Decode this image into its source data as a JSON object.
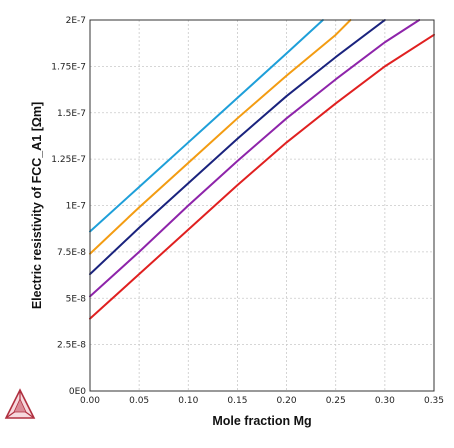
{
  "chart_data": {
    "type": "line",
    "title": "",
    "xlabel": "Mole fraction Mg",
    "ylabel": "Electric resistivity of FCC_A1 [Ωm]",
    "xlim": [
      0,
      0.35
    ],
    "ylim": [
      0,
      2e-07
    ],
    "xticks": [
      0,
      0.05,
      0.1,
      0.15,
      0.2,
      0.25,
      0.3,
      0.35
    ],
    "xtick_labels": [
      "0.00",
      "0.05",
      "0.10",
      "0.15",
      "0.20",
      "0.25",
      "0.30",
      "0.35"
    ],
    "yticks": [
      0,
      2.5e-08,
      5e-08,
      7.5e-08,
      1e-07,
      1.25e-07,
      1.5e-07,
      1.75e-07,
      2e-07
    ],
    "ytick_labels": [
      "0E0",
      "2.5E-8",
      "5E-8",
      "7.5E-8",
      "1E-7",
      "1.25E-7",
      "1.5E-7",
      "1.75E-7",
      "2E-7"
    ],
    "grid": true,
    "legend": "none",
    "series": [
      {
        "color": "#1e9fd9",
        "x": [
          0,
          0.05,
          0.1,
          0.15,
          0.2,
          0.237
        ],
        "y": [
          8.6e-08,
          1.1e-07,
          1.34e-07,
          1.58e-07,
          1.82e-07,
          2e-07
        ]
      },
      {
        "color": "#f39c12",
        "x": [
          0,
          0.05,
          0.1,
          0.15,
          0.2,
          0.25,
          0.265
        ],
        "y": [
          7.4e-08,
          9.9e-08,
          1.23e-07,
          1.47e-07,
          1.7e-07,
          1.92e-07,
          2e-07
        ]
      },
      {
        "color": "#1a237e",
        "x": [
          0,
          0.05,
          0.1,
          0.15,
          0.2,
          0.25,
          0.3
        ],
        "y": [
          6.3e-08,
          8.8e-08,
          1.12e-07,
          1.36e-07,
          1.59e-07,
          1.8e-07,
          2e-07
        ]
      },
      {
        "color": "#8e24aa",
        "x": [
          0,
          0.05,
          0.1,
          0.15,
          0.2,
          0.25,
          0.3,
          0.335
        ],
        "y": [
          5.1e-08,
          7.5e-08,
          1e-07,
          1.24e-07,
          1.47e-07,
          1.68e-07,
          1.88e-07,
          2e-07
        ]
      },
      {
        "color": "#e02020",
        "x": [
          0,
          0.05,
          0.1,
          0.15,
          0.2,
          0.25,
          0.3,
          0.35
        ],
        "y": [
          3.9e-08,
          6.3e-08,
          8.7e-08,
          1.11e-07,
          1.34e-07,
          1.55e-07,
          1.75e-07,
          1.92e-07
        ]
      }
    ]
  },
  "logo": {
    "name": "thermo-calc-logo-icon",
    "colors": [
      "#b03040",
      "#d98a96"
    ]
  }
}
